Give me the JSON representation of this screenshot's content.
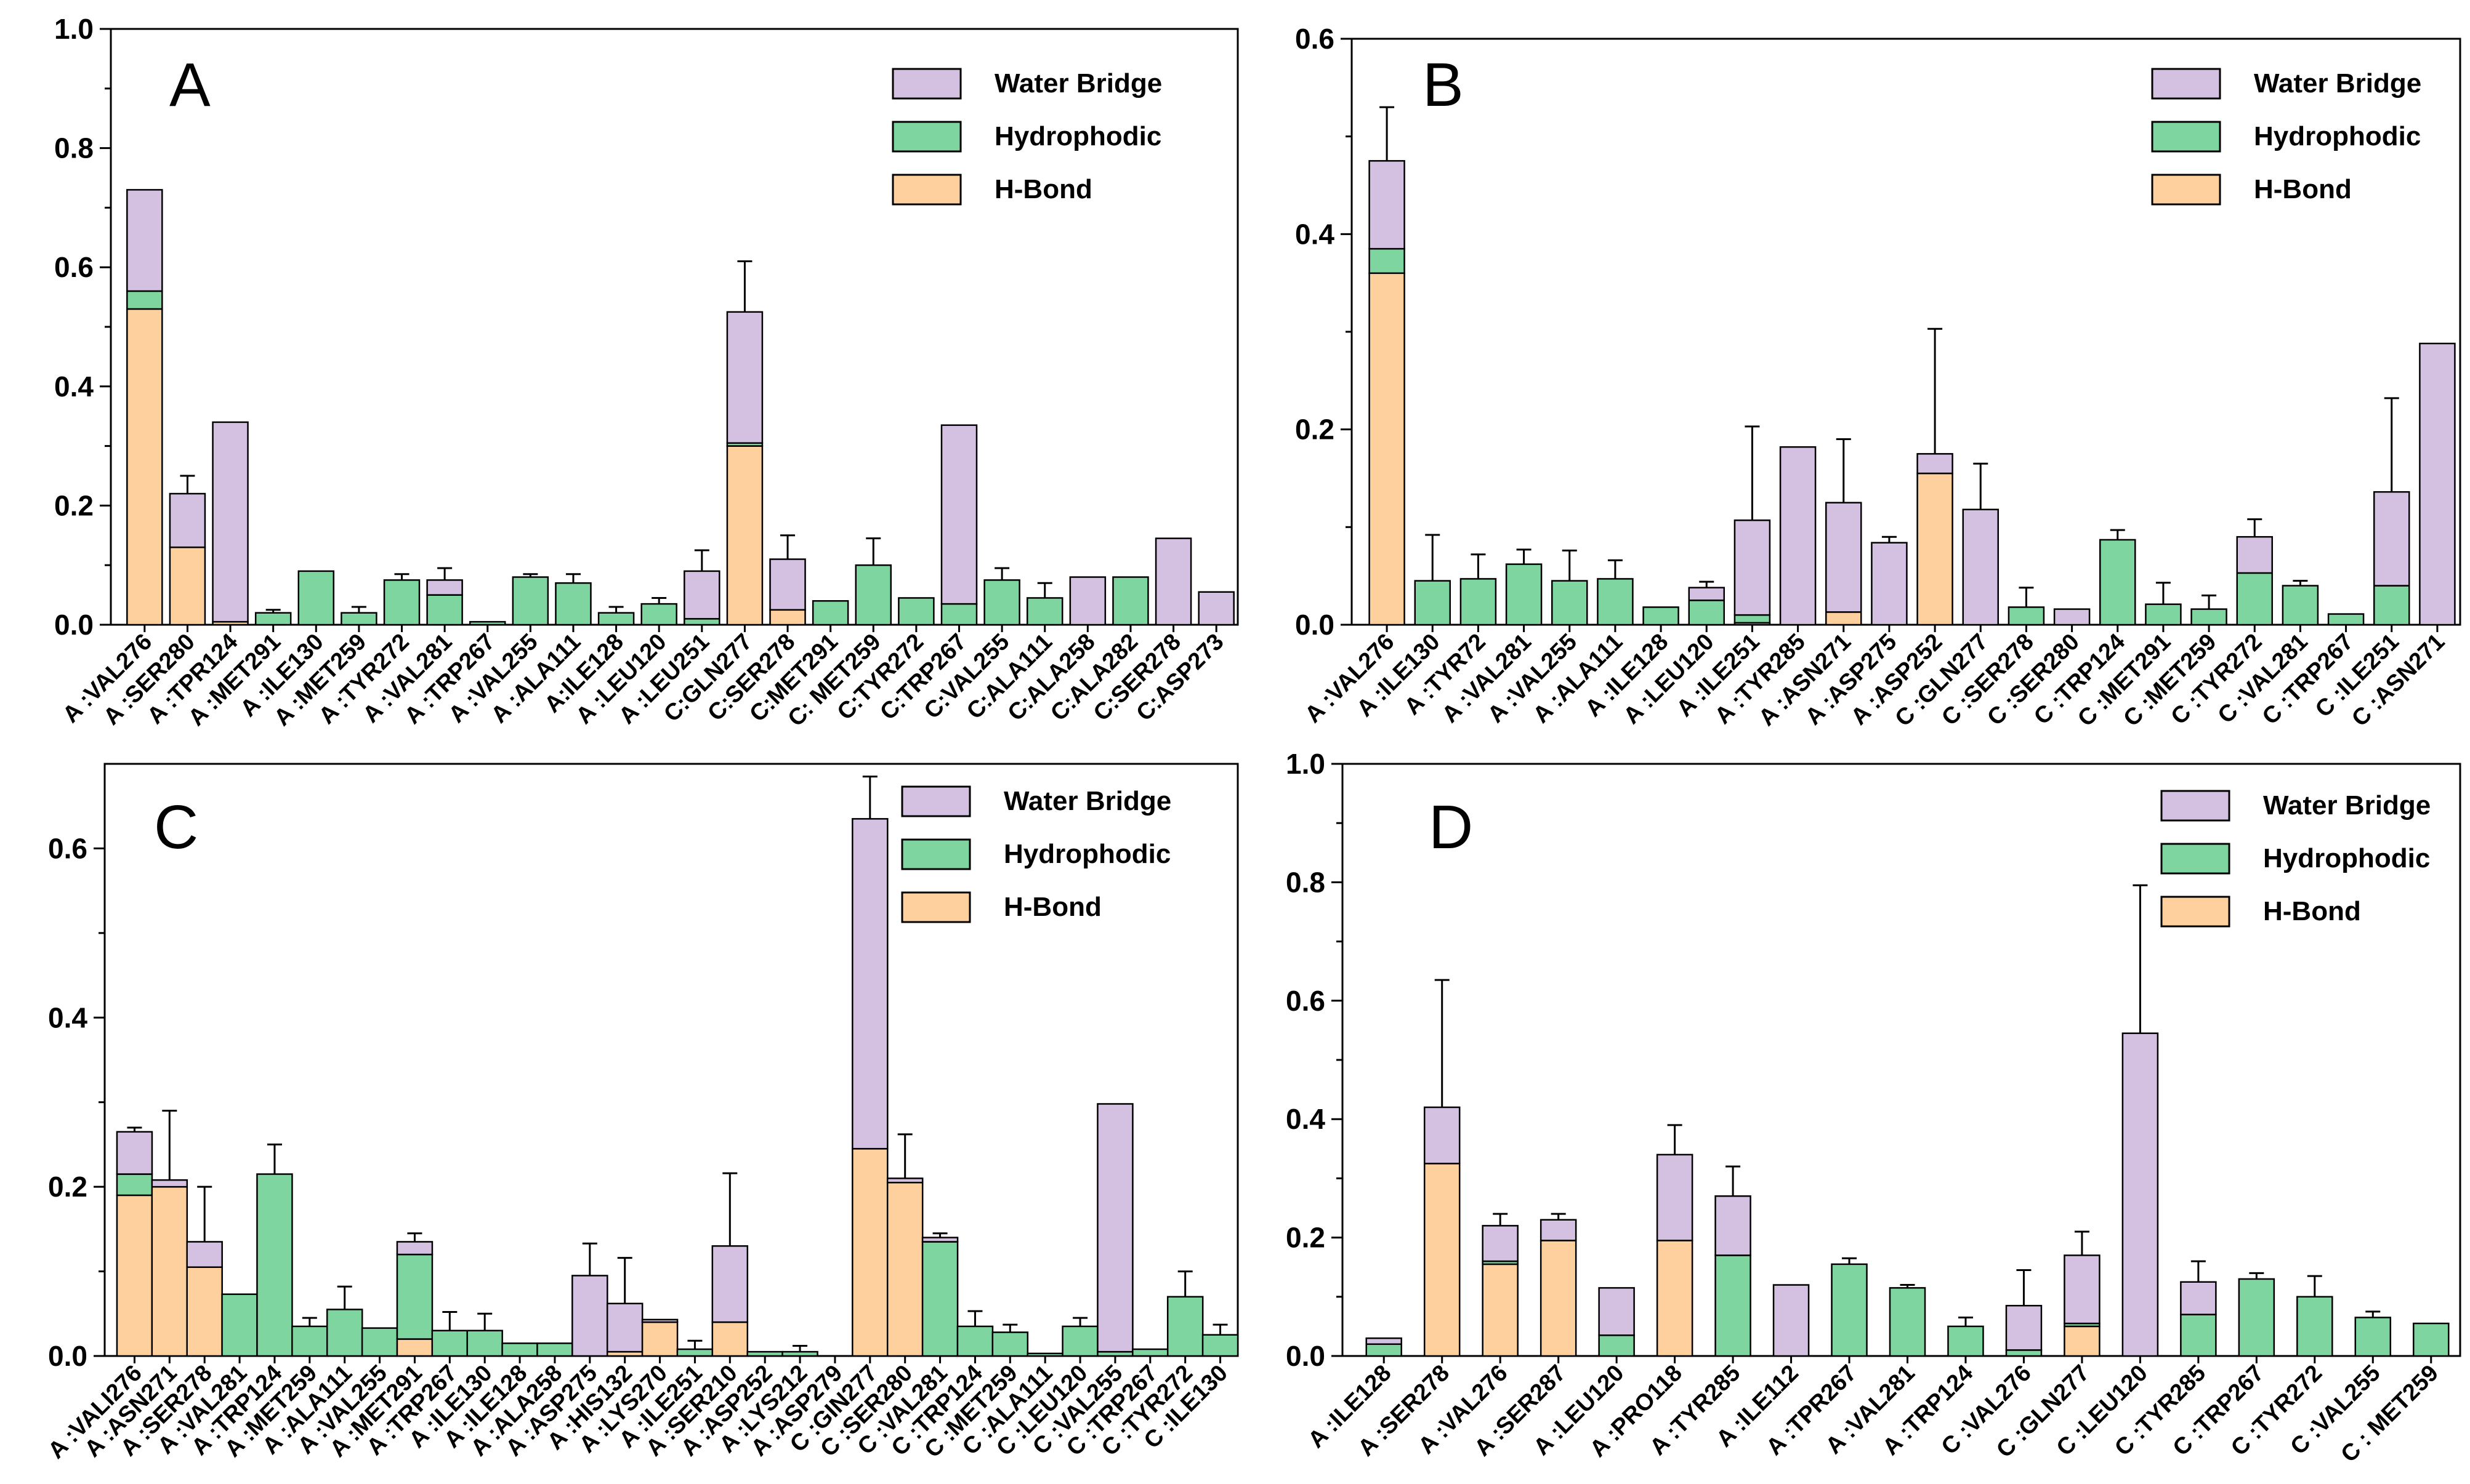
{
  "legend_colors": {
    "H-Bond": "#fdd09d",
    "Hydrophodic": "#7fd5a0",
    "Water Bridge": "#d4c0e0"
  },
  "chart_data": [
    {
      "type": "bar",
      "stacked": true,
      "panel": "A",
      "ylim": [
        0,
        1.0
      ],
      "yticks": [
        "0.0",
        "0.2",
        "0.4",
        "0.6",
        "0.8",
        "1.0"
      ],
      "legend": [
        "Water Bridge",
        "Hydrophodic",
        "H-Bond"
      ],
      "legend_position": "top-right",
      "categories": [
        "A :VAL276",
        "A :SER280",
        "A :TPR124",
        "A :MET291",
        "A :ILE130",
        "A :MET259",
        "A :TYR272",
        "A :VAL281",
        "A :TRP267",
        "A :VAL255",
        "A :ALA111",
        "A:ILE128",
        "A :LEU120",
        "A :LEU251",
        "C:GLN277",
        "C:SER278",
        "C:MET291",
        "C: MET259",
        "C:TYR272",
        "C:TRP267",
        "C:VAL255",
        "C:ALA111",
        "C:ALA258",
        "C:ALA282",
        "C:SER278",
        "C:ASP273"
      ],
      "series": [
        {
          "name": "H-Bond",
          "values": [
            0.53,
            0.13,
            0.005,
            0,
            0,
            0,
            0,
            0,
            0,
            0,
            0,
            0,
            0,
            0,
            0.3,
            0.025,
            0,
            0,
            0,
            0,
            0,
            0,
            0,
            0,
            0,
            0
          ]
        },
        {
          "name": "Hydrophodic",
          "values": [
            0.03,
            0,
            0,
            0.02,
            0.09,
            0.02,
            0.075,
            0.05,
            0.005,
            0.08,
            0.07,
            0.02,
            0.035,
            0.01,
            0.005,
            0,
            0.04,
            0.1,
            0.045,
            0.035,
            0.075,
            0.045,
            0,
            0.08,
            0,
            0
          ]
        },
        {
          "name": "Water Bridge",
          "values": [
            0.17,
            0.09,
            0.335,
            0,
            0,
            0,
            0,
            0.025,
            0,
            0,
            0,
            0,
            0,
            0.08,
            0.22,
            0.085,
            0,
            0,
            0,
            0.3,
            0,
            0,
            0.08,
            0,
            0.145,
            0.055
          ]
        }
      ],
      "error": [
        0.64,
        0.25,
        0,
        0.025,
        0,
        0.03,
        0.085,
        0.095,
        0,
        0.085,
        0.085,
        0.03,
        0.045,
        0.125,
        0.61,
        0.15,
        0,
        0.145,
        0,
        0,
        0.095,
        0.07,
        0,
        0,
        0,
        0
      ]
    },
    {
      "type": "bar",
      "stacked": true,
      "panel": "B",
      "ylim": [
        0,
        0.6
      ],
      "yticks": [
        "0.0",
        "0.2",
        "0.4",
        "0.6"
      ],
      "legend": [
        "Water Bridge",
        "Hydrophodic",
        "H-Bond"
      ],
      "legend_position": "top-right",
      "categories": [
        "A :VAL276",
        "A :ILE130",
        "A :TYR72",
        "A :VAL281",
        "A :VAL255",
        "A :ALA111",
        "A :ILE128",
        "A :LEU120",
        "A :ILE251",
        "A :TYR285",
        "A :ASN271",
        "A :ASP275",
        "A :ASP252",
        "C :GLN277",
        "C :SER278",
        "C :SER280",
        "C :TRP124",
        "C :MET291",
        "C :MET259",
        "C :TYR272",
        "C :VAL281",
        "C :TRP267",
        "C :ILE251",
        "C :ASN271"
      ],
      "series": [
        {
          "name": "H-Bond",
          "values": [
            0.36,
            0,
            0,
            0,
            0,
            0,
            0,
            0,
            0.002,
            0,
            0.013,
            0,
            0.155,
            0,
            0,
            0,
            0,
            0,
            0,
            0,
            0,
            0,
            0,
            0
          ]
        },
        {
          "name": "Hydrophodic",
          "values": [
            0.025,
            0.045,
            0.047,
            0.062,
            0.045,
            0.047,
            0.018,
            0.025,
            0.008,
            0,
            0,
            0,
            0,
            0,
            0.018,
            0,
            0.087,
            0.021,
            0.016,
            0.053,
            0.04,
            0.011,
            0.04,
            0
          ]
        },
        {
          "name": "Water Bridge",
          "values": [
            0.09,
            0,
            0,
            0,
            0,
            0,
            0,
            0.013,
            0.097,
            0.182,
            0.112,
            0.084,
            0.02,
            0.118,
            0,
            0.016,
            0,
            0,
            0,
            0.037,
            0,
            0,
            0.096,
            0.288
          ]
        }
      ],
      "error": [
        0.53,
        0.092,
        0.072,
        0.077,
        0.076,
        0.066,
        0,
        0.044,
        0.203,
        0,
        0.19,
        0.09,
        0.303,
        0.165,
        0.038,
        0,
        0.097,
        0.043,
        0.03,
        0.108,
        0.045,
        0,
        0.232,
        0
      ]
    },
    {
      "type": "bar",
      "stacked": true,
      "panel": "C",
      "ylim": [
        0,
        0.7
      ],
      "yticks": [
        "0.0",
        "0.2",
        "0.4",
        "0.6"
      ],
      "legend": [
        "Water Bridge",
        "Hydrophodic",
        "H-Bond"
      ],
      "legend_position": "top-right",
      "categories": [
        "A :VALI276",
        "A :ASN271",
        "A :SER278",
        "A :VAL281",
        "A :TRP124",
        "A :MET259",
        "A :ALA111",
        "A :VAL255",
        "A :MET291",
        "A :TRP267",
        "A :ILE130",
        "A :ILE128",
        "A :ALA258",
        "A :ASP275",
        "A :HIS132",
        "A :LYS270",
        "A :ILE251",
        "A :SER210",
        "A :ASP252",
        "A :LYS212",
        "A :ASP279",
        "C :GIN277",
        "C :SER280",
        "C :VAL281",
        "C :TRP124",
        "C :MET259",
        "C :ALA111",
        "C :LEU120",
        "C :VAL255",
        "C :TRP267",
        "C :TYR272",
        "C :ILE130"
      ],
      "series": [
        {
          "name": "H-Bond",
          "values": [
            0.19,
            0.2,
            0.105,
            0,
            0,
            0,
            0,
            0,
            0.02,
            0,
            0,
            0,
            0,
            0,
            0.005,
            0.04,
            0,
            0.04,
            0,
            0,
            0,
            0.245,
            0.205,
            0,
            0,
            0,
            0,
            0,
            0,
            0,
            0,
            0
          ]
        },
        {
          "name": "Hydrophodic",
          "values": [
            0.025,
            0,
            0,
            0.073,
            0.215,
            0.035,
            0.055,
            0.033,
            0.1,
            0.03,
            0.03,
            0.015,
            0.015,
            0,
            0,
            0,
            0.008,
            0,
            0.005,
            0.005,
            0,
            0,
            0,
            0.135,
            0.035,
            0.028,
            0.003,
            0.035,
            0.005,
            0.008,
            0.07,
            0.025
          ]
        },
        {
          "name": "Water Bridge",
          "values": [
            0.05,
            0.008,
            0.03,
            0,
            0,
            0,
            0,
            0,
            0.015,
            0,
            0,
            0,
            0,
            0.095,
            0.057,
            0.003,
            0,
            0.09,
            0,
            0,
            0,
            0.39,
            0.005,
            0.005,
            0,
            0,
            0,
            0,
            0.293,
            0,
            0,
            0
          ]
        }
      ],
      "error": [
        0.27,
        0.29,
        0.2,
        0,
        0.25,
        0.045,
        0.082,
        0.036,
        0.145,
        0.052,
        0.05,
        0.015,
        0,
        0.133,
        0.116,
        0,
        0.018,
        0.216,
        0,
        0.012,
        0,
        0.685,
        0.262,
        0.145,
        0.053,
        0.037,
        0,
        0.045,
        0,
        0.012,
        0.1,
        0.037
      ]
    },
    {
      "type": "bar",
      "stacked": true,
      "panel": "D",
      "ylim": [
        0,
        1.0
      ],
      "yticks": [
        "0.0",
        "0.2",
        "0.4",
        "0.6",
        "0.8",
        "1.0"
      ],
      "legend": [
        "Water Bridge",
        "Hydrophodic",
        "H-Bond"
      ],
      "legend_position": "top-right",
      "categories": [
        "A :ILE128",
        "A :SER278",
        "A :VAL276",
        "A :SER287",
        "A :LEU120",
        "A :PRO118",
        "A :TYR285",
        "A :ILE112",
        "A :TPR267",
        "A :VAL281",
        "A :TRP124",
        "C :VAL276",
        "C :GLN277",
        "C :LEU120",
        "C :TYR285",
        "C :TRP267",
        "C :TYR272",
        "C :VAL255",
        "C : MET259"
      ],
      "series": [
        {
          "name": "H-Bond",
          "values": [
            0,
            0.325,
            0.155,
            0.195,
            0,
            0.195,
            0,
            0,
            0,
            0,
            0,
            0,
            0.05,
            0,
            0,
            0,
            0,
            0,
            0
          ]
        },
        {
          "name": "Hydrophodic",
          "values": [
            0.02,
            0,
            0.005,
            0,
            0.035,
            0,
            0.17,
            0,
            0.155,
            0.115,
            0.05,
            0.01,
            0.005,
            0,
            0.07,
            0.13,
            0.1,
            0.065,
            0.055
          ]
        },
        {
          "name": "Water Bridge",
          "values": [
            0.01,
            0.095,
            0.06,
            0.035,
            0.08,
            0.145,
            0.1,
            0.12,
            0,
            0,
            0,
            0.075,
            0.115,
            0.545,
            0.055,
            0,
            0,
            0,
            0
          ]
        }
      ],
      "error": [
        0,
        0.635,
        0.24,
        0.24,
        0.055,
        0.39,
        0.32,
        0,
        0.165,
        0.12,
        0.065,
        0.145,
        0.21,
        0.795,
        0.16,
        0.14,
        0.135,
        0.075,
        0
      ]
    }
  ]
}
